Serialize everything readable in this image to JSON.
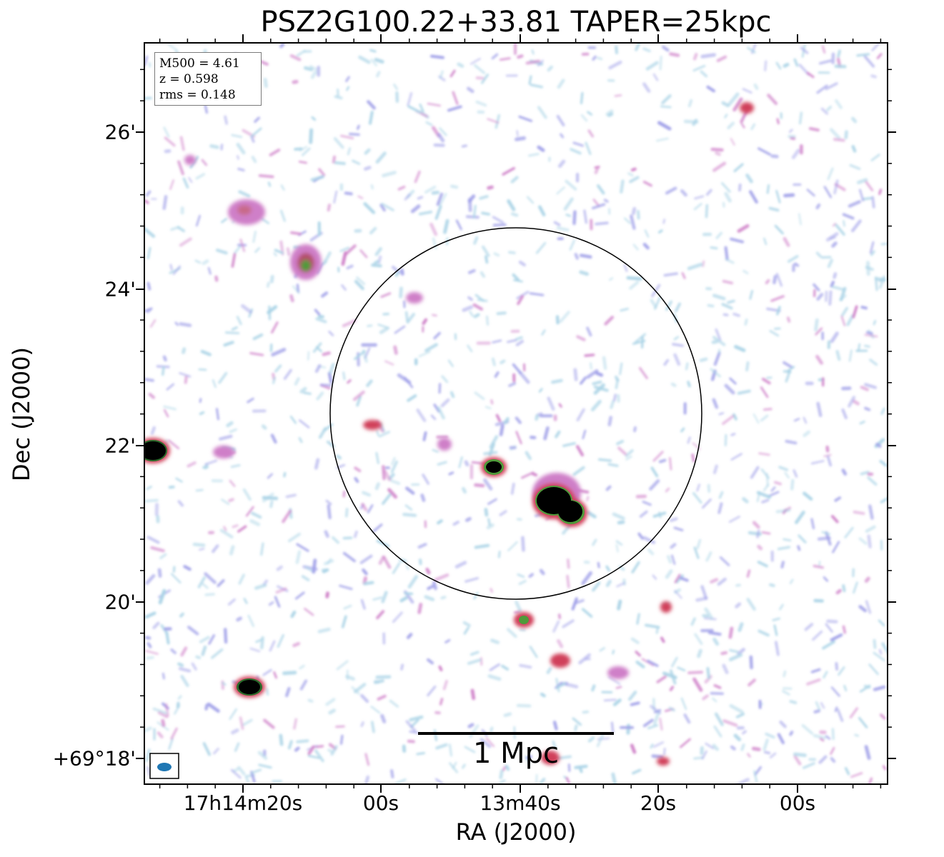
{
  "title": "PSZ2G100.22+33.81 TAPER=25kpc",
  "axes": {
    "xlabel": "RA (J2000)",
    "ylabel": "Dec (J2000)",
    "y_ticks": [
      "26'",
      "24'",
      "22'",
      "20'",
      "+69°18'"
    ],
    "x_ticks": [
      "17h14m20s",
      "00s",
      "13m40s",
      "20s",
      "00s"
    ]
  },
  "info": {
    "m500": "M500 = 4.61",
    "z": "z = 0.598",
    "rms": "rms = 0.148"
  },
  "scalebar": {
    "label": "1 Mpc"
  },
  "colors": {
    "frame": "#000000",
    "beam": "#1f77b4",
    "noise_light": "#a9d3e6",
    "noise_mid": "#9e9ee8",
    "emission_pink": "#cf7fc8",
    "emission_red": "#d0405a",
    "emission_green": "#4f9a3a",
    "source_core": "#000000"
  }
}
